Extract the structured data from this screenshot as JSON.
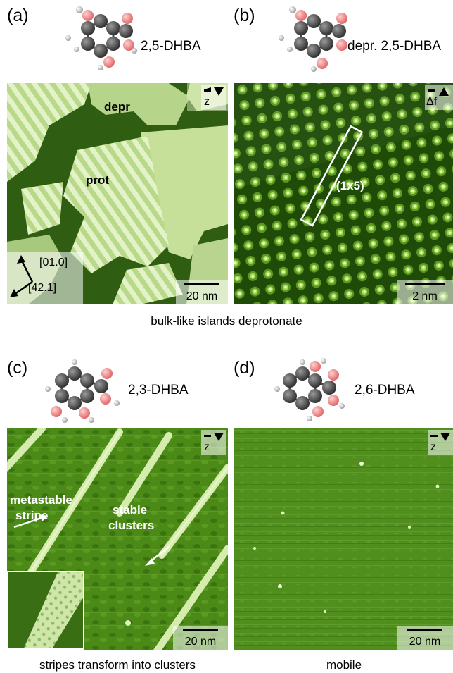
{
  "panels": {
    "a": {
      "label": "(a)",
      "molecule": "2,5-DHBA",
      "labels": {
        "depr": "depr",
        "prot": "prot",
        "dir1": "[01.0]",
        "dir2": "[42.1]"
      },
      "scale": "20 nm",
      "channel": "z"
    },
    "b": {
      "label": "(b)",
      "molecule": "depr. 2,5-DHBA",
      "labels": {
        "cell": "(1x5)"
      },
      "scale": "2 nm",
      "channel": "Δf"
    },
    "c": {
      "label": "(c)",
      "molecule": "2,3-DHBA",
      "labels": {
        "meta1": "metastable",
        "meta2": "stripe",
        "stable1": "stable",
        "stable2": "clusters"
      },
      "scale": "20 nm",
      "channel": "z"
    },
    "d": {
      "label": "(d)",
      "molecule": "2,6-DHBA",
      "scale": "20 nm",
      "channel": "z"
    }
  },
  "captions": {
    "row1": "bulk-like islands deprotonate",
    "c": "stripes transform into clusters",
    "d": "mobile"
  },
  "colors": {
    "carbon": "#555555",
    "oxygen": "#f08a8a",
    "hydrogen": "#c8c8c8",
    "stm_dark": "#2d5a10",
    "stm_light": "#d9ecb0"
  }
}
